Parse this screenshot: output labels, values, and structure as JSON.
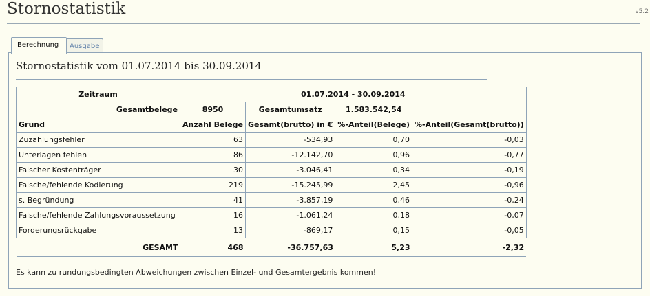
{
  "app": {
    "title": "Stornostatistik",
    "version": "v5.2"
  },
  "tabs": [
    {
      "label": "Berechnung",
      "active": true
    },
    {
      "label": "Ausgabe",
      "active": false
    }
  ],
  "report": {
    "title": "Stornostatistik vom 01.07.2014 bis 30.09.2014",
    "zeitraum_label": "Zeitraum",
    "zeitraum_value": "01.07.2014 - 30.09.2014",
    "gesamtbelege_label": "Gesamtbelege",
    "gesamtbelege_value": "8950",
    "gesamtumsatz_label": "Gesamtumsatz",
    "gesamtumsatz_value": "1.583.542,54",
    "columns": [
      "Grund",
      "Anzahl Belege",
      "Gesamt(brutto) in €",
      "%-Anteil(Belege)",
      "%-Anteil(Gesamt(brutto))"
    ],
    "rows": [
      [
        "Zuzahlungsfehler",
        "63",
        "-534,93",
        "0,70",
        "-0,03"
      ],
      [
        "Unterlagen fehlen",
        "86",
        "-12.142,70",
        "0,96",
        "-0,77"
      ],
      [
        "Falscher Kostenträger",
        "30",
        "-3.046,41",
        "0,34",
        "-0,19"
      ],
      [
        "Falsche/fehlende Kodierung",
        "219",
        "-15.245,99",
        "2,45",
        "-0,96"
      ],
      [
        "s. Begründung",
        "41",
        "-3.857,19",
        "0,46",
        "-0,24"
      ],
      [
        "Falsche/fehlende Zahlungsvoraussetzung",
        "16",
        "-1.061,24",
        "0,18",
        "-0,07"
      ],
      [
        "Forderungsrückgabe",
        "13",
        "-869,17",
        "0,15",
        "-0,05"
      ]
    ],
    "total": [
      "GESAMT",
      "468",
      "-36.757,63",
      "5,23",
      "-2,32"
    ],
    "note": "Es kann zu rundungsbedingten Abweichungen zwischen Einzel- und Gesamtergebnis kommen!"
  }
}
